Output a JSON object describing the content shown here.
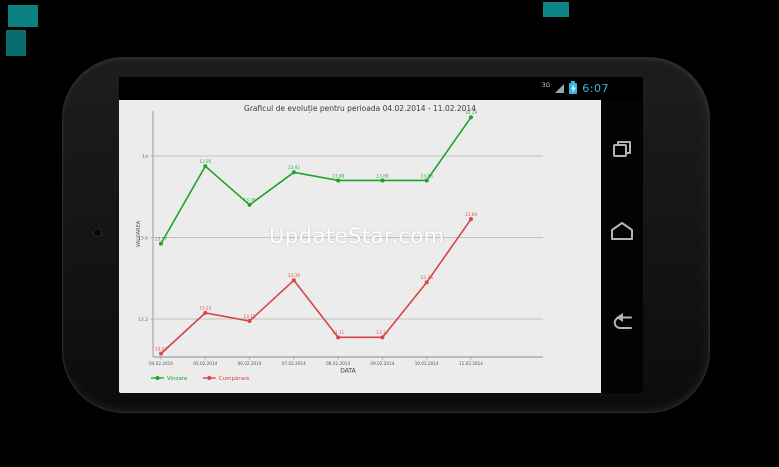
{
  "status_bar": {
    "network_label": "3G",
    "time": "6:07"
  },
  "watermark": "UpdateStar.com",
  "nav_bar": {
    "buttons": [
      "recents",
      "home",
      "back"
    ]
  },
  "chart_data": {
    "type": "line",
    "title": "Graficul de evoluție pentru perioada 04.02.2014 - 11.02.2014",
    "xlabel": "DATA",
    "ylabel": "VALOAREA",
    "categories": [
      "04.02.2014",
      "05.02.2014",
      "06.02.2014",
      "07.02.2014",
      "08.02.2014",
      "09.02.2014",
      "10.02.2014",
      "11.02.2014"
    ],
    "y_ticks": [
      "14",
      "13.6",
      "13.2"
    ],
    "ylim": [
      13.0,
      14.2
    ],
    "grid": true,
    "legend_position": "bottom-left",
    "series": [
      {
        "name": "Vinzare",
        "color": "#1fa32e",
        "values": [
          13.57,
          13.95,
          13.76,
          13.92,
          13.88,
          13.88,
          13.88,
          14.19
        ]
      },
      {
        "name": "Cumpărare",
        "color": "#d94444",
        "values": [
          13.03,
          13.23,
          13.19,
          13.39,
          13.11,
          13.11,
          13.38,
          13.69
        ]
      }
    ]
  },
  "colors": {
    "accent_blue": "#33b5e5",
    "chart_bg": "#ececec",
    "gridline": "#b5b5b5",
    "axis": "#8a8a9e",
    "tick_text": "#6e6e6e"
  }
}
